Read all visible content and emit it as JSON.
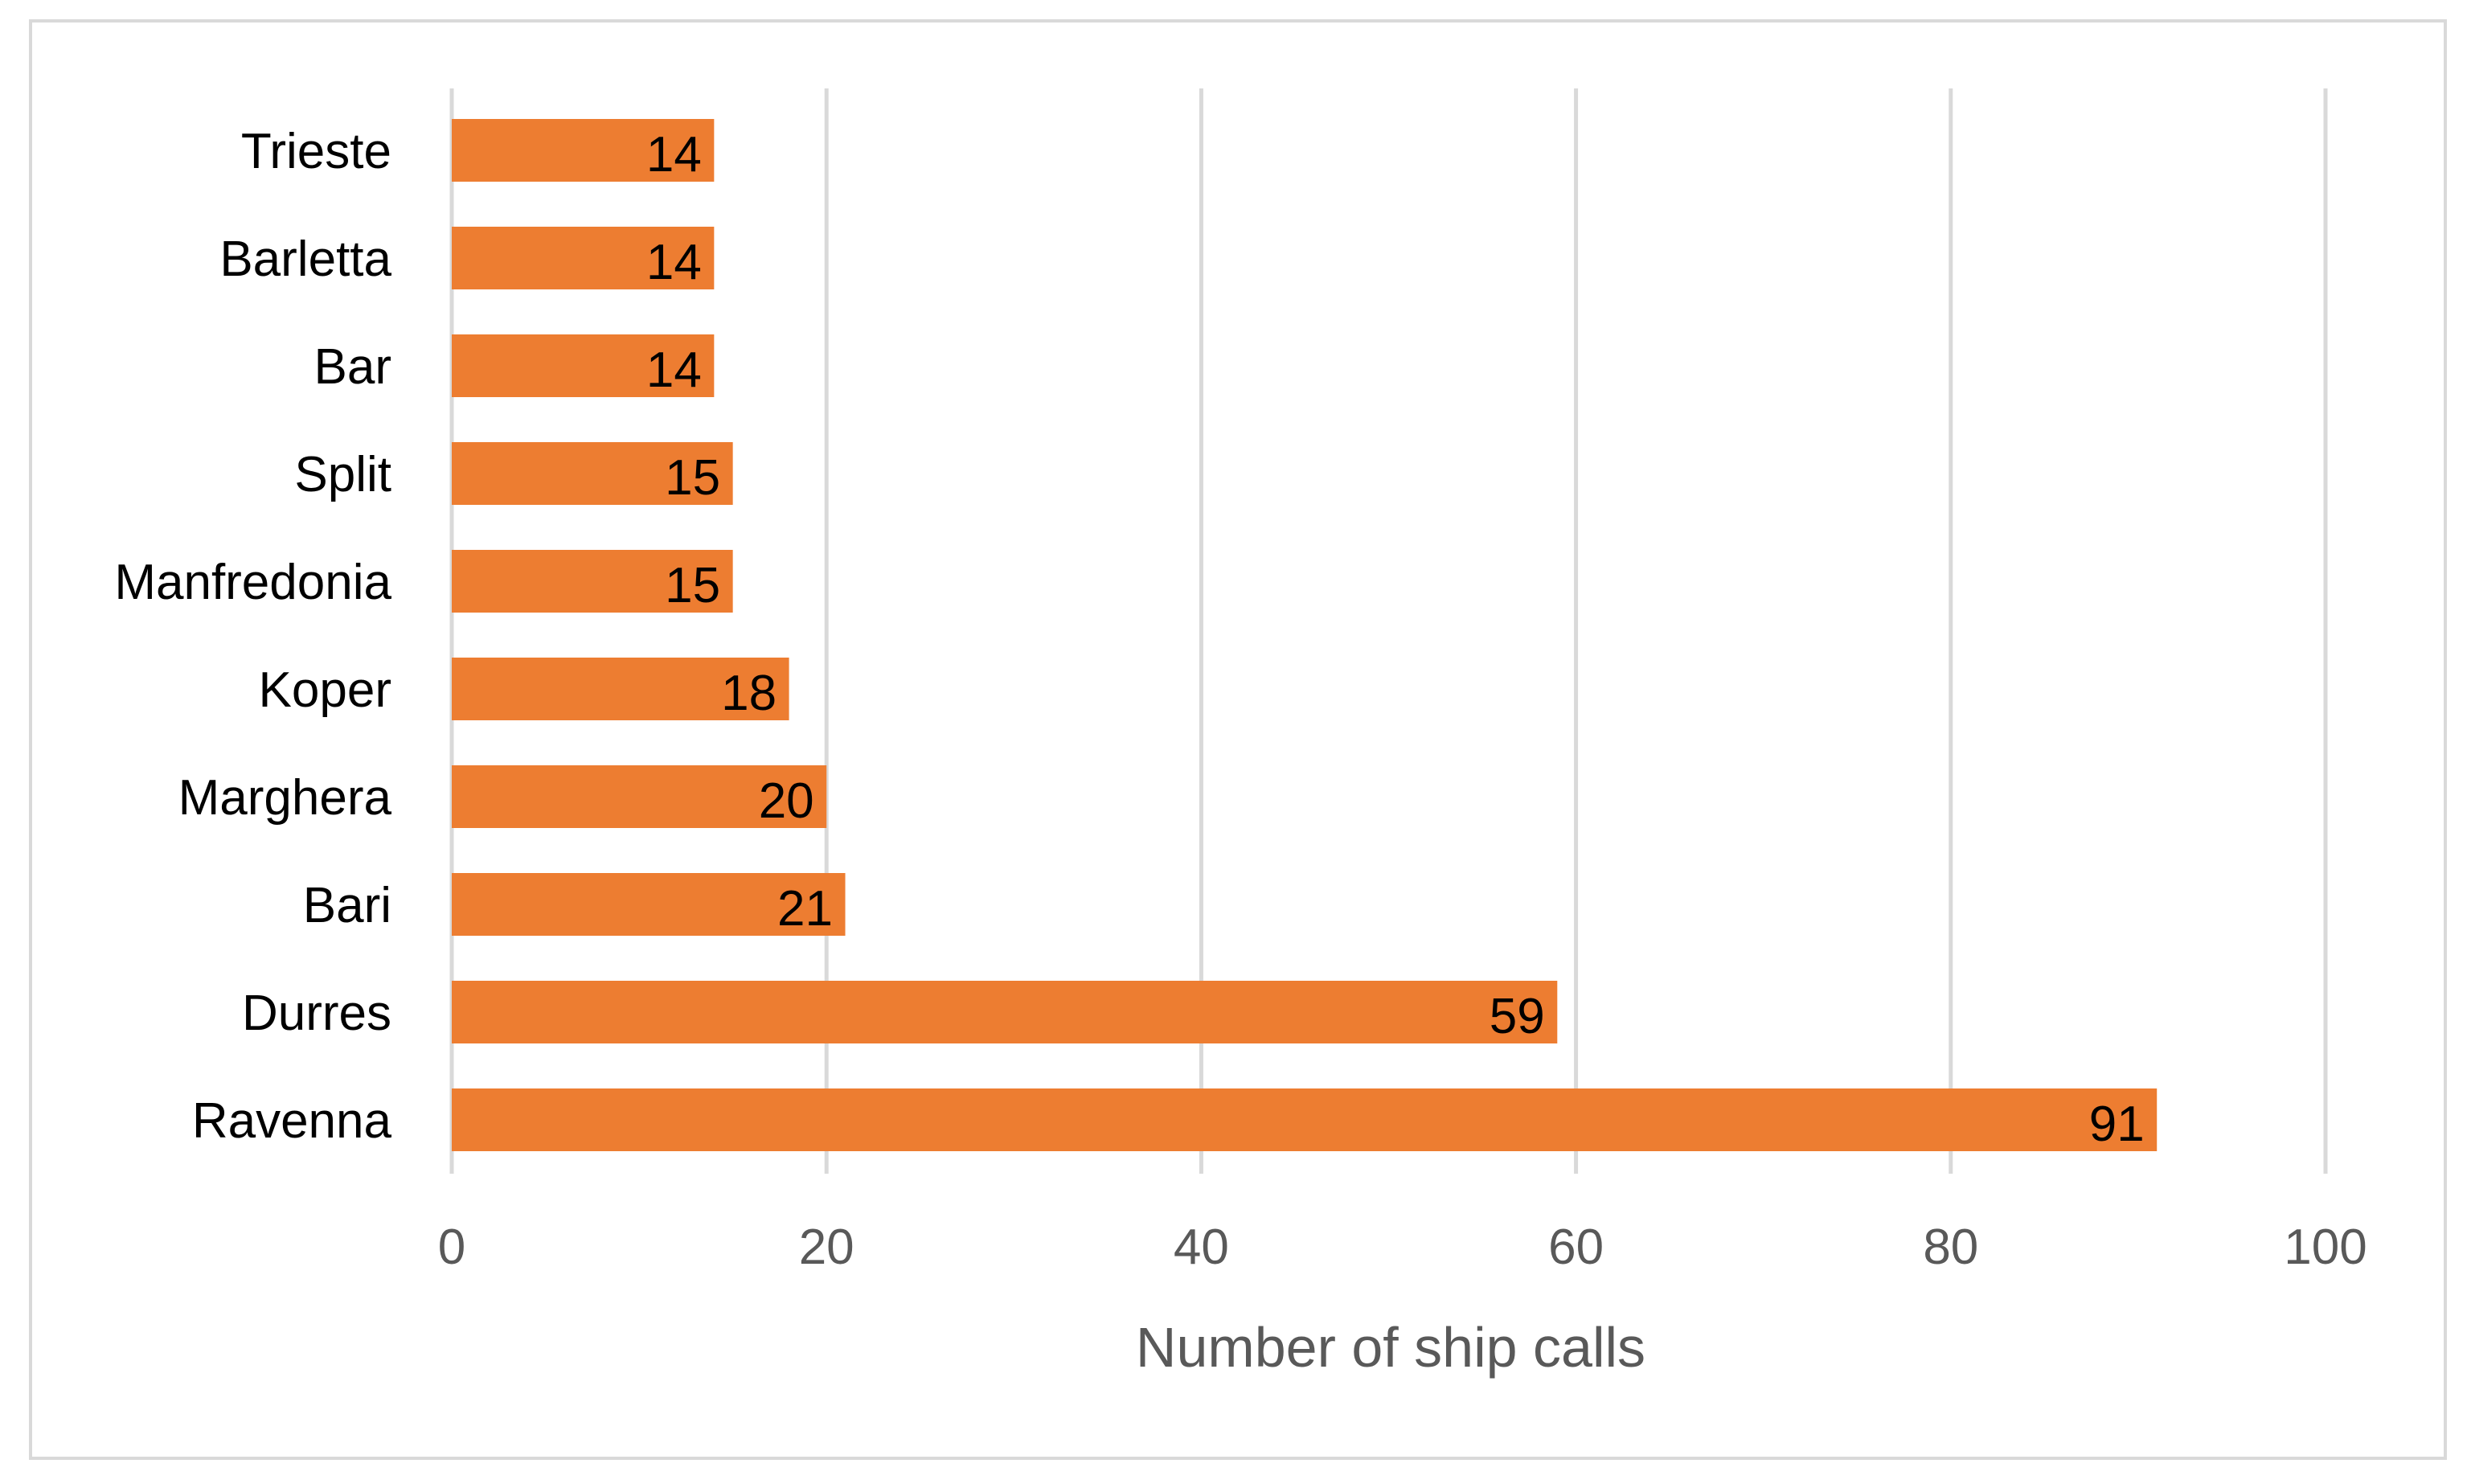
{
  "chart_data": {
    "type": "bar",
    "orientation": "horizontal",
    "categories": [
      "Trieste",
      "Barletta",
      "Bar",
      "Split",
      "Manfredonia",
      "Koper",
      "Marghera",
      "Bari",
      "Durres",
      "Ravenna"
    ],
    "values": [
      14,
      14,
      14,
      15,
      15,
      18,
      20,
      21,
      59,
      91
    ],
    "xlabel": "Number of ship calls",
    "xlim": [
      0,
      100
    ],
    "xticks": [
      "0",
      "20",
      "40",
      "60",
      "80",
      "100"
    ],
    "grid": true,
    "legend": "none",
    "bar_color": "#ED7D31",
    "data_labels": true
  }
}
